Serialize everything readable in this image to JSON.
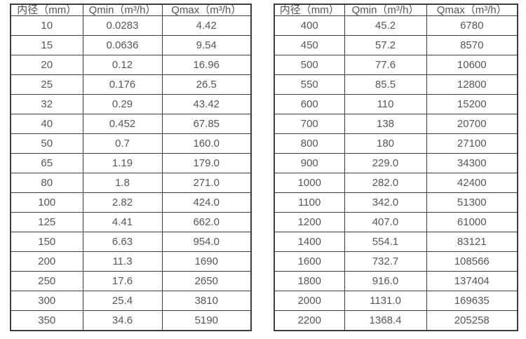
{
  "colors": {
    "background": "#ffffff",
    "border": "#3c3c3c",
    "text": "#565656"
  },
  "tables": [
    {
      "name": "flow-table-small-diameters",
      "headers": [
        "内径（mm）",
        "Qmin（m³/h）",
        "Qmax（m³/h）"
      ],
      "rows": [
        [
          "10",
          "0.0283",
          "4.42"
        ],
        [
          "15",
          "0.0636",
          "9.54"
        ],
        [
          "20",
          "0.12",
          "16.96"
        ],
        [
          "25",
          "0.176",
          "26.5"
        ],
        [
          "32",
          "0.29",
          "43.42"
        ],
        [
          "40",
          "0.452",
          "67.85"
        ],
        [
          "50",
          "0.7",
          "160.0"
        ],
        [
          "65",
          "1.19",
          "179.0"
        ],
        [
          "80",
          "1.8",
          "271.0"
        ],
        [
          "100",
          "2.82",
          "424.0"
        ],
        [
          "125",
          "4.41",
          "662.0"
        ],
        [
          "150",
          "6.63",
          "954.0"
        ],
        [
          "200",
          "11.3",
          "1690"
        ],
        [
          "250",
          "17.6",
          "2650"
        ],
        [
          "300",
          "25.4",
          "3810"
        ],
        [
          "350",
          "34.6",
          "5190"
        ]
      ]
    },
    {
      "name": "flow-table-large-diameters",
      "headers": [
        "内径（mm）",
        "Qmin（m³/h）",
        "Qmax（m³/h）"
      ],
      "rows": [
        [
          "400",
          "45.2",
          "6780"
        ],
        [
          "450",
          "57.2",
          "8570"
        ],
        [
          "500",
          "77.6",
          "10600"
        ],
        [
          "550",
          "85.5",
          "12800"
        ],
        [
          "600",
          "110",
          "15200"
        ],
        [
          "700",
          "138",
          "20700"
        ],
        [
          "800",
          "180",
          "27100"
        ],
        [
          "900",
          "229.0",
          "34300"
        ],
        [
          "1000",
          "282.0",
          "42400"
        ],
        [
          "1100",
          "342.0",
          "51300"
        ],
        [
          "1200",
          "407.0",
          "61000"
        ],
        [
          "1400",
          "554.1",
          "83121"
        ],
        [
          "1600",
          "732.7",
          "108566"
        ],
        [
          "1800",
          "916.0",
          "137404"
        ],
        [
          "2000",
          "1131.0",
          "169635"
        ],
        [
          "2200",
          "1368.4",
          "205258"
        ]
      ]
    }
  ]
}
